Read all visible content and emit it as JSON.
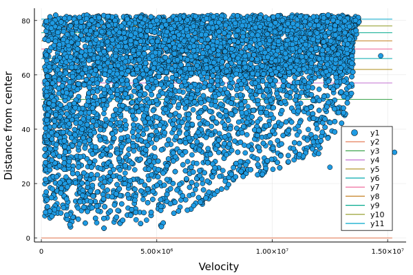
{
  "chart_data": {
    "type": "scatter",
    "xlabel": "Velocity",
    "ylabel": "Distance from center",
    "xlim": [
      -300000,
      15800000
    ],
    "ylim": [
      -1.5,
      84.5
    ],
    "xticks": [
      {
        "value": 0,
        "label": "0"
      },
      {
        "value": 5000000,
        "label": "5.00×10⁶"
      },
      {
        "value": 10000000,
        "label": "1.00×10⁷"
      },
      {
        "value": 15000000,
        "label": "1.50×10⁷"
      }
    ],
    "yticks": [
      0,
      20,
      40,
      60,
      80
    ],
    "grid": true,
    "legend": "bottom-right",
    "point_color": "#1f9be3",
    "point_count_estimate": 9000,
    "point_envelope": [
      {
        "distance": 3,
        "max_velocity": 5000000
      },
      {
        "distance": 10,
        "max_velocity": 6500000
      },
      {
        "distance": 20,
        "max_velocity": 8500000
      },
      {
        "distance": 30,
        "max_velocity": 12000000
      },
      {
        "distance": 40,
        "max_velocity": 13000000
      },
      {
        "distance": 50,
        "max_velocity": 13500000
      },
      {
        "distance": 60,
        "max_velocity": 13500000
      },
      {
        "distance": 70,
        "max_velocity": 13500000
      },
      {
        "distance": 80,
        "max_velocity": 13800000
      }
    ],
    "outliers": [
      {
        "x": 15300000,
        "y": 31.5
      },
      {
        "x": 14700000,
        "y": 67
      },
      {
        "x": 13100000,
        "y": 52
      },
      {
        "x": 12500000,
        "y": 26
      }
    ],
    "series": [
      {
        "name": "y1",
        "kind": "scatter"
      },
      {
        "name": "y2",
        "kind": "hline",
        "y": 0,
        "color": "#e26f46"
      },
      {
        "name": "y3",
        "kind": "hline",
        "y": 51,
        "color": "#3da44d"
      },
      {
        "name": "y4",
        "kind": "hline",
        "y": 57,
        "color": "#c271d2"
      },
      {
        "name": "y5",
        "kind": "hline",
        "y": 62,
        "color": "#ac8e18"
      },
      {
        "name": "y6",
        "kind": "hline",
        "y": 66,
        "color": "#00a9ad"
      },
      {
        "name": "y7",
        "kind": "hline",
        "y": 69.5,
        "color": "#ed5e93"
      },
      {
        "name": "y8",
        "kind": "hline",
        "y": 72.5,
        "color": "#c68125"
      },
      {
        "name": "y9",
        "kind": "hline",
        "y": 75.5,
        "color": "#00a98d"
      },
      {
        "name": "y10",
        "kind": "hline",
        "y": 78,
        "color": "#8e971e"
      },
      {
        "name": "y11",
        "kind": "hline",
        "y": 80.5,
        "color": "#00a8cb"
      }
    ]
  }
}
